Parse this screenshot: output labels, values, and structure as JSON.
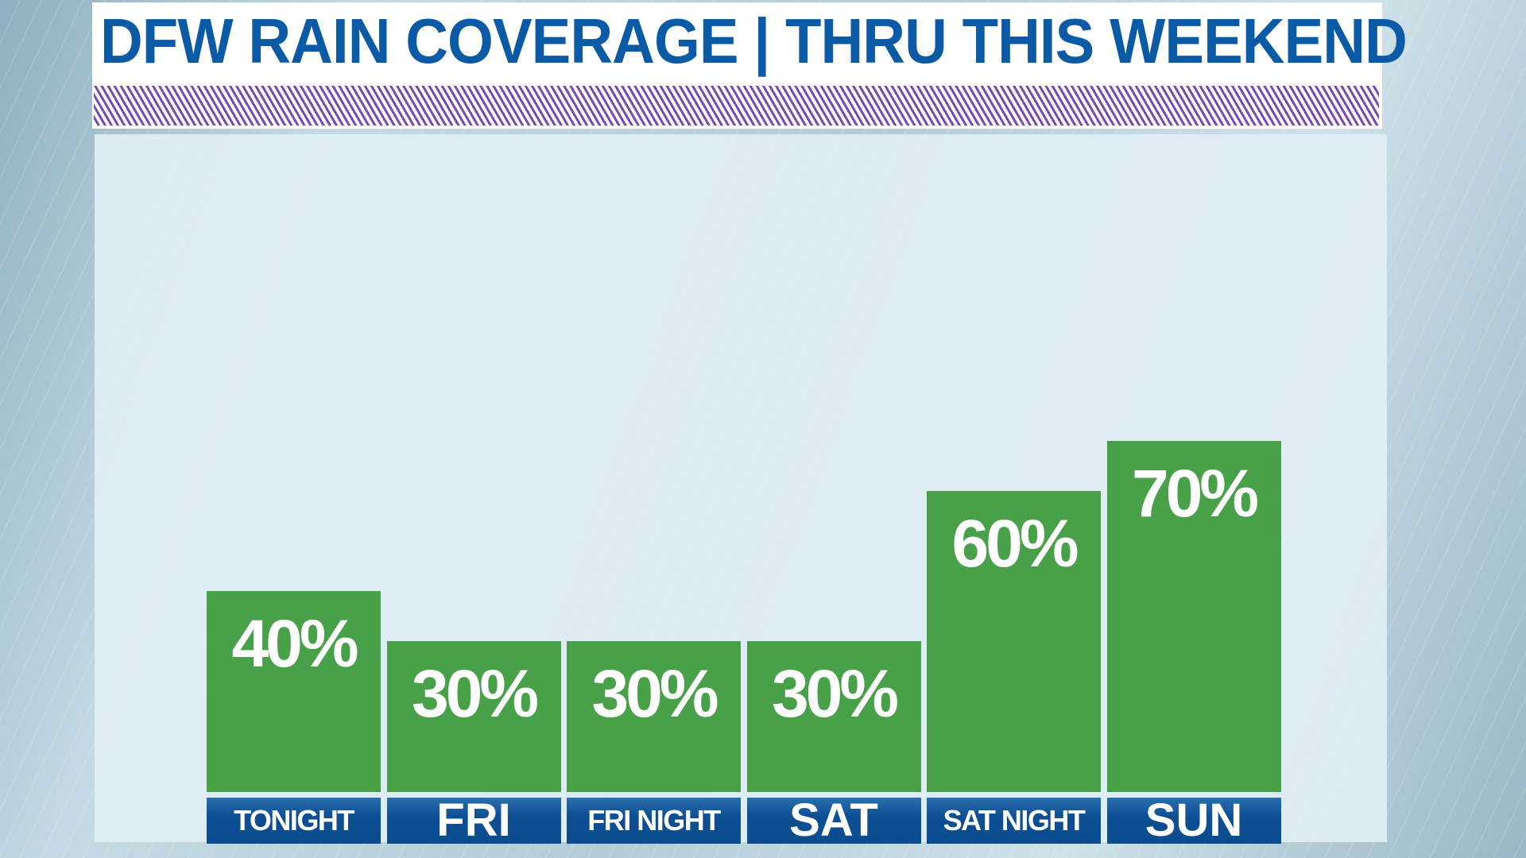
{
  "title": "DFW RAIN COVERAGE | THRU THIS WEEKEND",
  "colors": {
    "title": "#0b5aa6",
    "bar": "#48a049",
    "label_bg": "#0d4f93",
    "hatch": "#7a48b5"
  },
  "chart_data": {
    "type": "bar",
    "title": "DFW RAIN COVERAGE | THRU THIS WEEKEND",
    "categories": [
      "TONIGHT",
      "FRI",
      "FRI NIGHT",
      "SAT",
      "SAT NIGHT",
      "SUN"
    ],
    "values": [
      40,
      30,
      30,
      30,
      60,
      70
    ],
    "value_labels": [
      "40%",
      "30%",
      "30%",
      "30%",
      "60%",
      "70%"
    ],
    "ylim": [
      0,
      100
    ],
    "grid": false,
    "xlabel": "",
    "ylabel": ""
  }
}
